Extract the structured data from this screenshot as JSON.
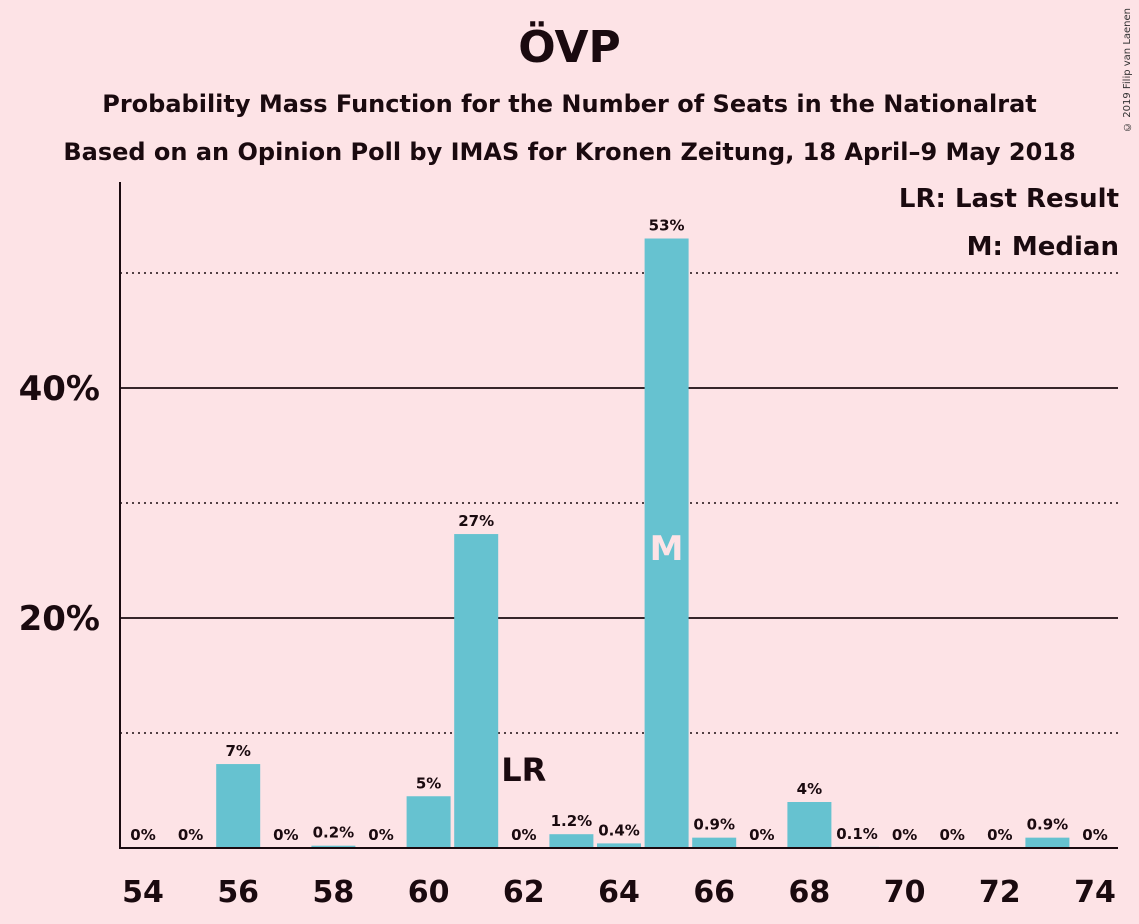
{
  "header": {
    "title": "ÖVP",
    "subtitle1": "Probability Mass Function for the Number of Seats in the Nationalrat",
    "subtitle2": "Based on an Opinion Poll by IMAS for Kronen Zeitung, 18 April–9 May 2018",
    "copyright": "© 2019 Filip van Laenen"
  },
  "legend": {
    "lr": "LR: Last Result",
    "m": "M: Median"
  },
  "chart_data": {
    "type": "bar",
    "x": [
      54,
      55,
      56,
      57,
      58,
      59,
      60,
      61,
      62,
      63,
      64,
      65,
      66,
      67,
      68,
      69,
      70,
      71,
      72,
      73,
      74
    ],
    "values": [
      0,
      0,
      7.3,
      0,
      0.2,
      0,
      4.5,
      27.3,
      0,
      1.2,
      0.4,
      53,
      0.9,
      0,
      4,
      0.1,
      0,
      0,
      0,
      0.9,
      0
    ],
    "labels": [
      "0%",
      "0%",
      "7%",
      "0%",
      "0.2%",
      "0%",
      "5%",
      "27%",
      "0%",
      "1.2%",
      "0.4%",
      "53%",
      "0.9%",
      "0%",
      "4%",
      "0.1%",
      "0%",
      "0%",
      "0%",
      "0.9%",
      "0%"
    ],
    "x_tick_labels": [
      "54",
      "56",
      "58",
      "60",
      "62",
      "64",
      "66",
      "68",
      "70",
      "72",
      "74"
    ],
    "y_tick_labels": [
      "20%",
      "40%"
    ],
    "ylim": [
      0,
      57.5
    ],
    "major_grid": [
      20,
      40
    ],
    "minor_grid": [
      10,
      30,
      50
    ],
    "last_result_seat": 62,
    "last_result_label": "LR",
    "median_seat": 65,
    "median_label": "M",
    "bar_color": "#66c2d0",
    "grid": true,
    "legend_position": "top-right"
  }
}
